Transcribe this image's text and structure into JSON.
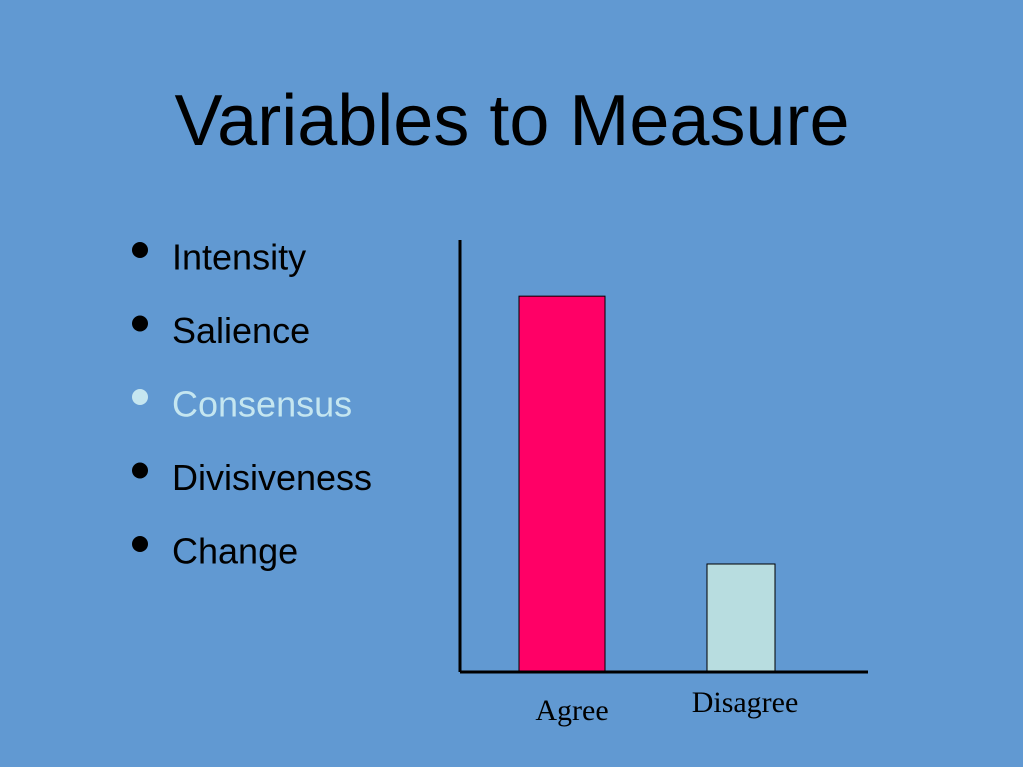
{
  "title": "Variables to Measure",
  "bullets": [
    "Intensity",
    "Salience",
    "Consensus",
    "Divisiveness",
    "Change"
  ],
  "chart_data": {
    "type": "bar",
    "categories": [
      "Agree",
      "Disagree"
    ],
    "values": [
      87,
      25
    ],
    "colors": [
      "#ff0066",
      "#b8dde0"
    ],
    "ylim": [
      0,
      100
    ]
  }
}
